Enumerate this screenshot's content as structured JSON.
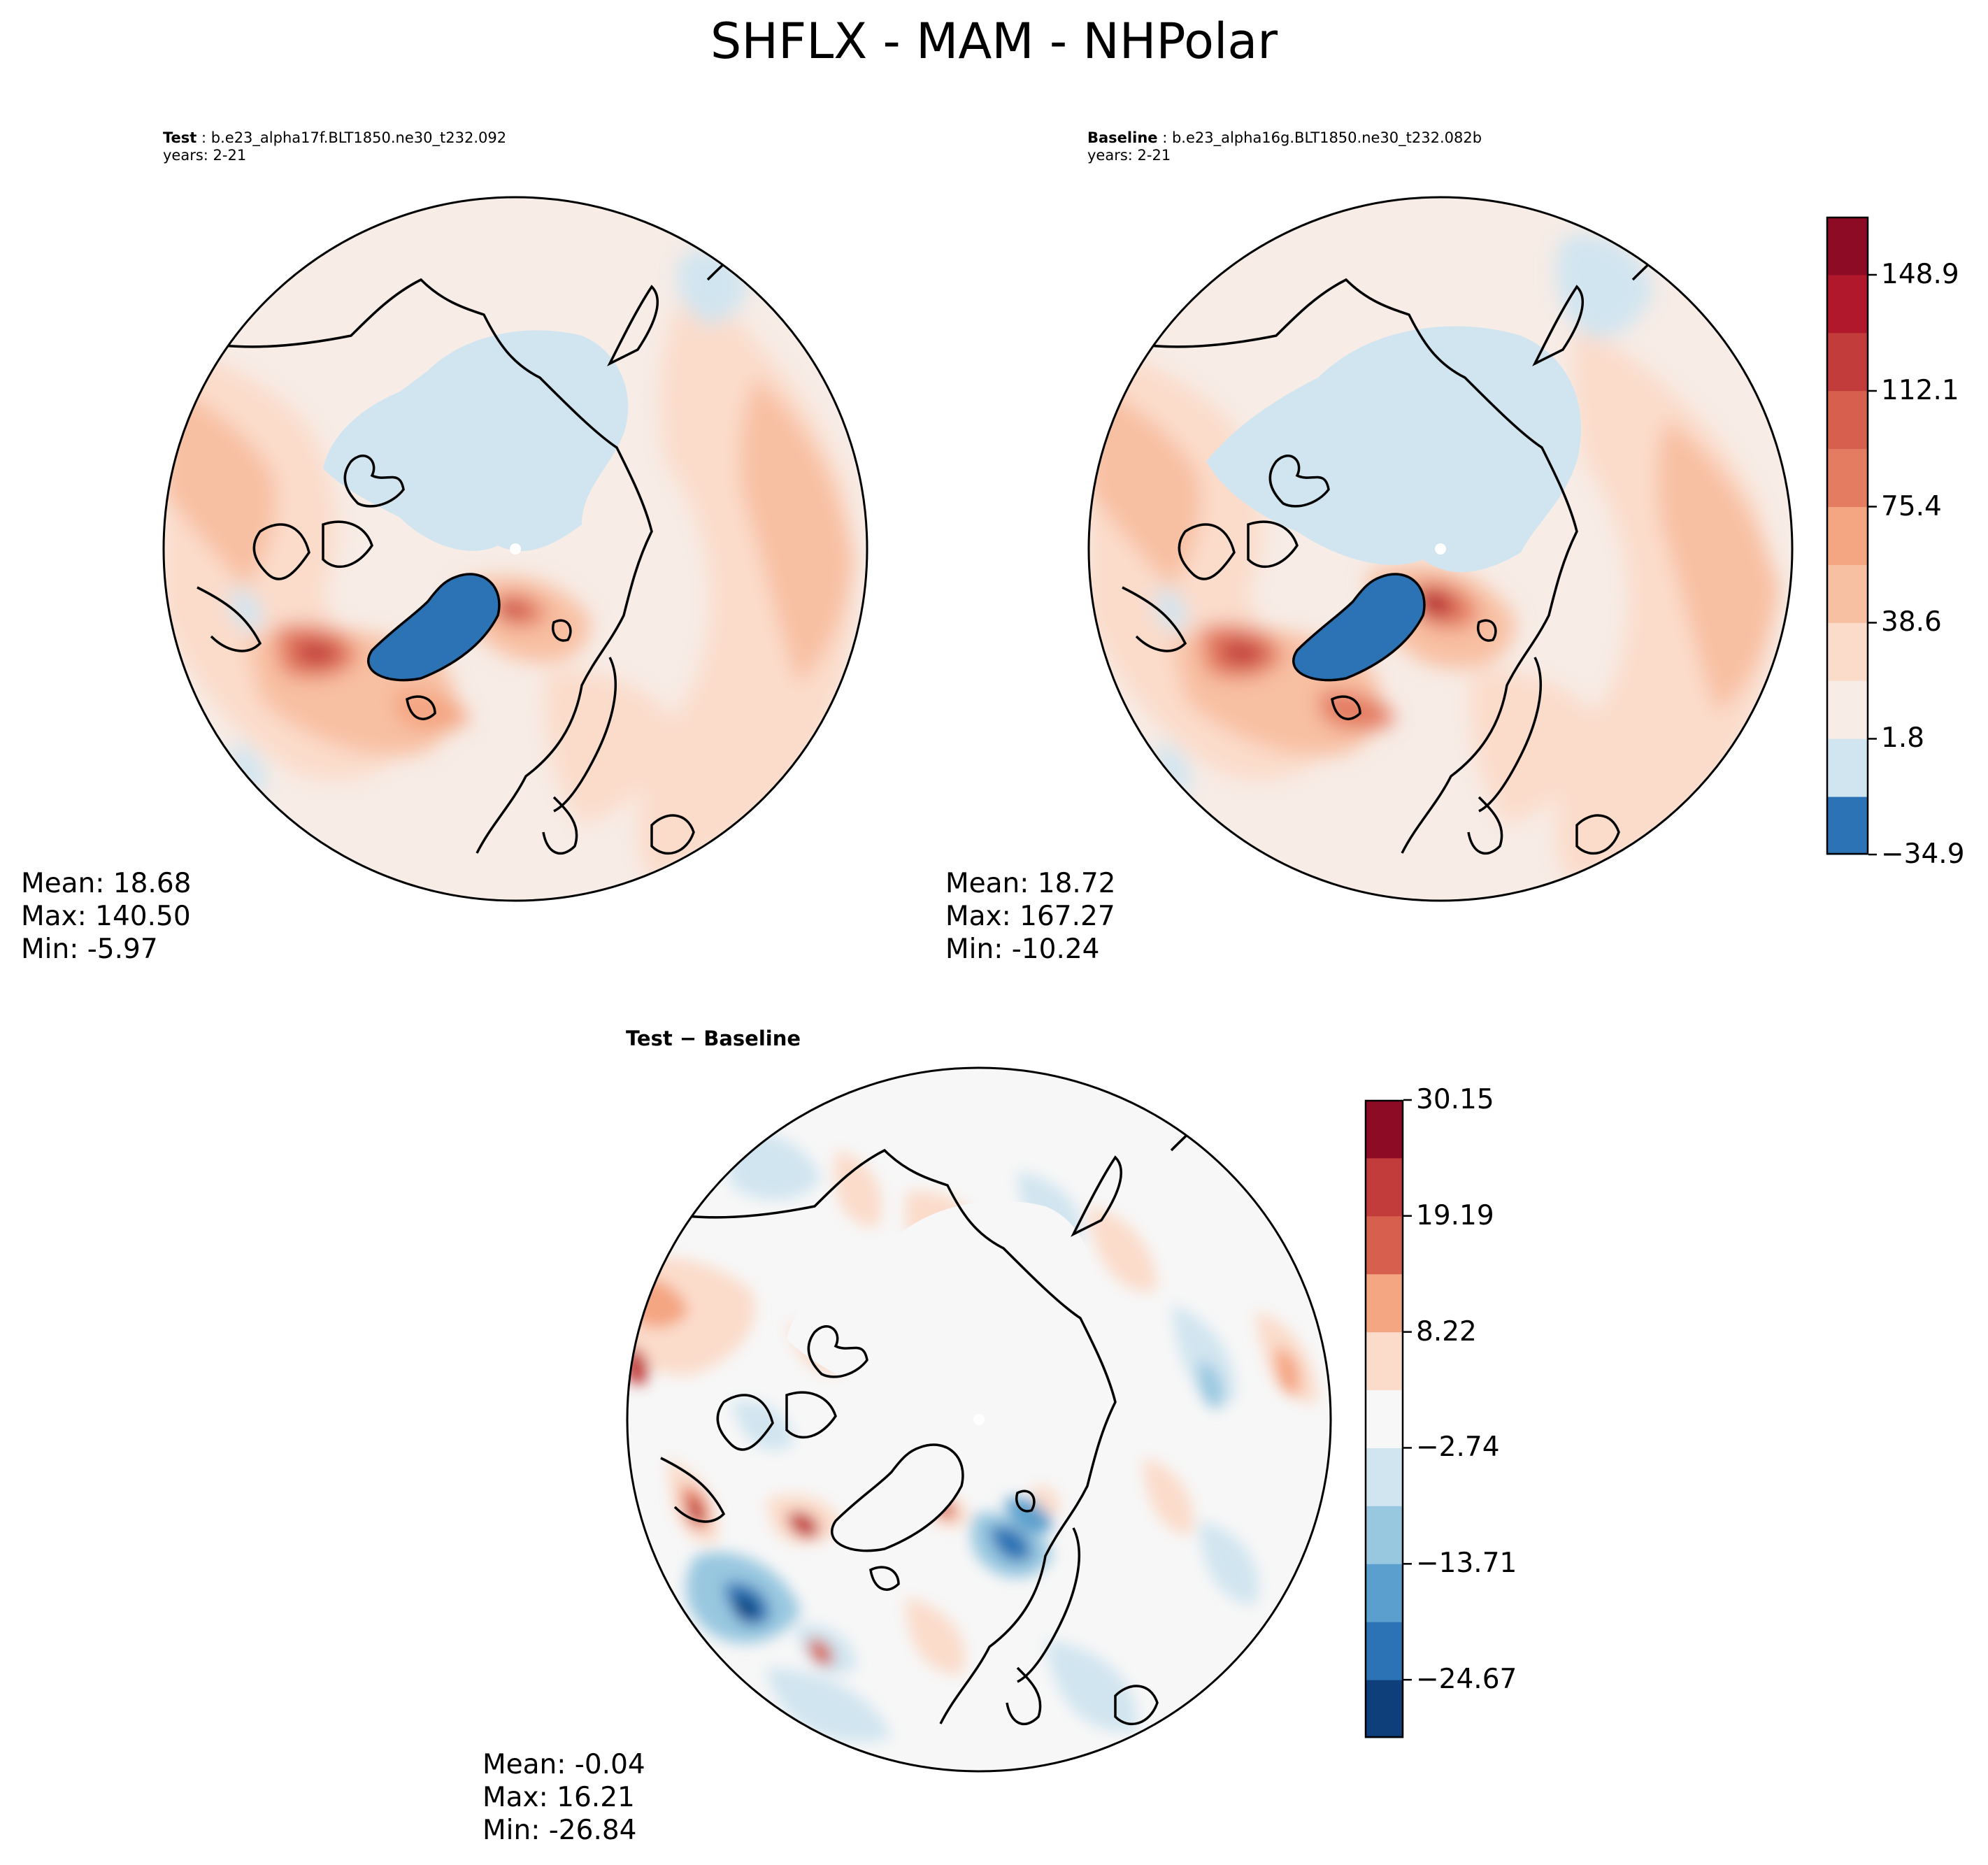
{
  "figure": {
    "title": "SHFLX - MAM - NHPolar"
  },
  "chart_data": [
    {
      "type": "map-contour",
      "panel": "test",
      "title_bold": "Test",
      "case_name": "b.e23_alpha17f.BLT1850.ne30_t232.092",
      "years_text": "years: 2-21",
      "projection": "north-polar-stereographic",
      "stats": {
        "mean": "Mean: 18.68",
        "max": "Max: 140.50",
        "min": "Min: -5.97"
      },
      "levels": [
        -34.9,
        -16.5,
        1.8,
        20.2,
        38.6,
        57.0,
        75.4,
        93.7,
        112.1,
        130.5,
        148.9,
        167.3
      ]
    },
    {
      "type": "map-contour",
      "panel": "baseline",
      "title_bold": "Baseline",
      "case_name": "b.e23_alpha16g.BLT1850.ne30_t232.082b",
      "years_text": "years: 2-21",
      "projection": "north-polar-stereographic",
      "stats": {
        "mean": "Mean: 18.72",
        "max": "Max: 167.27",
        "min": "Min: -10.24"
      },
      "colorbar": {
        "tick_labels": [
          "148.9",
          "112.1",
          "75.4",
          "38.6",
          "1.8",
          "−34.9"
        ],
        "tick_values": [
          148.9,
          112.1,
          75.4,
          38.6,
          1.8,
          -34.9
        ],
        "range": [
          -34.9,
          167.3
        ],
        "colors": [
          "#2c73b5",
          "#d1e5f0",
          "#f7ece6",
          "#fbdccb",
          "#f8c0a3",
          "#f4a582",
          "#e47c62",
          "#d6604d",
          "#c23c3c",
          "#b2182b",
          "#8d0b24"
        ]
      }
    },
    {
      "type": "map-contour",
      "panel": "difference",
      "title_text": "Test − Baseline",
      "projection": "north-polar-stereographic",
      "stats": {
        "mean": "Mean: -0.04",
        "max": "Max: 16.21",
        "min": "Min: -26.84"
      },
      "colorbar": {
        "tick_labels": [
          "30.15",
          "19.19",
          "8.22",
          "−2.74",
          "−13.71",
          "−24.67"
        ],
        "tick_values": [
          30.15,
          19.19,
          8.22,
          -2.74,
          -13.71,
          -24.67
        ],
        "range": [
          -30.15,
          30.15
        ],
        "colors": [
          "#0f3f7a",
          "#2c73b5",
          "#5a9fcd",
          "#98c7e0",
          "#d1e5f0",
          "#f7f7f7",
          "#fbdccb",
          "#f4a582",
          "#d6604d",
          "#c23c3c",
          "#8d0b24"
        ]
      }
    }
  ]
}
